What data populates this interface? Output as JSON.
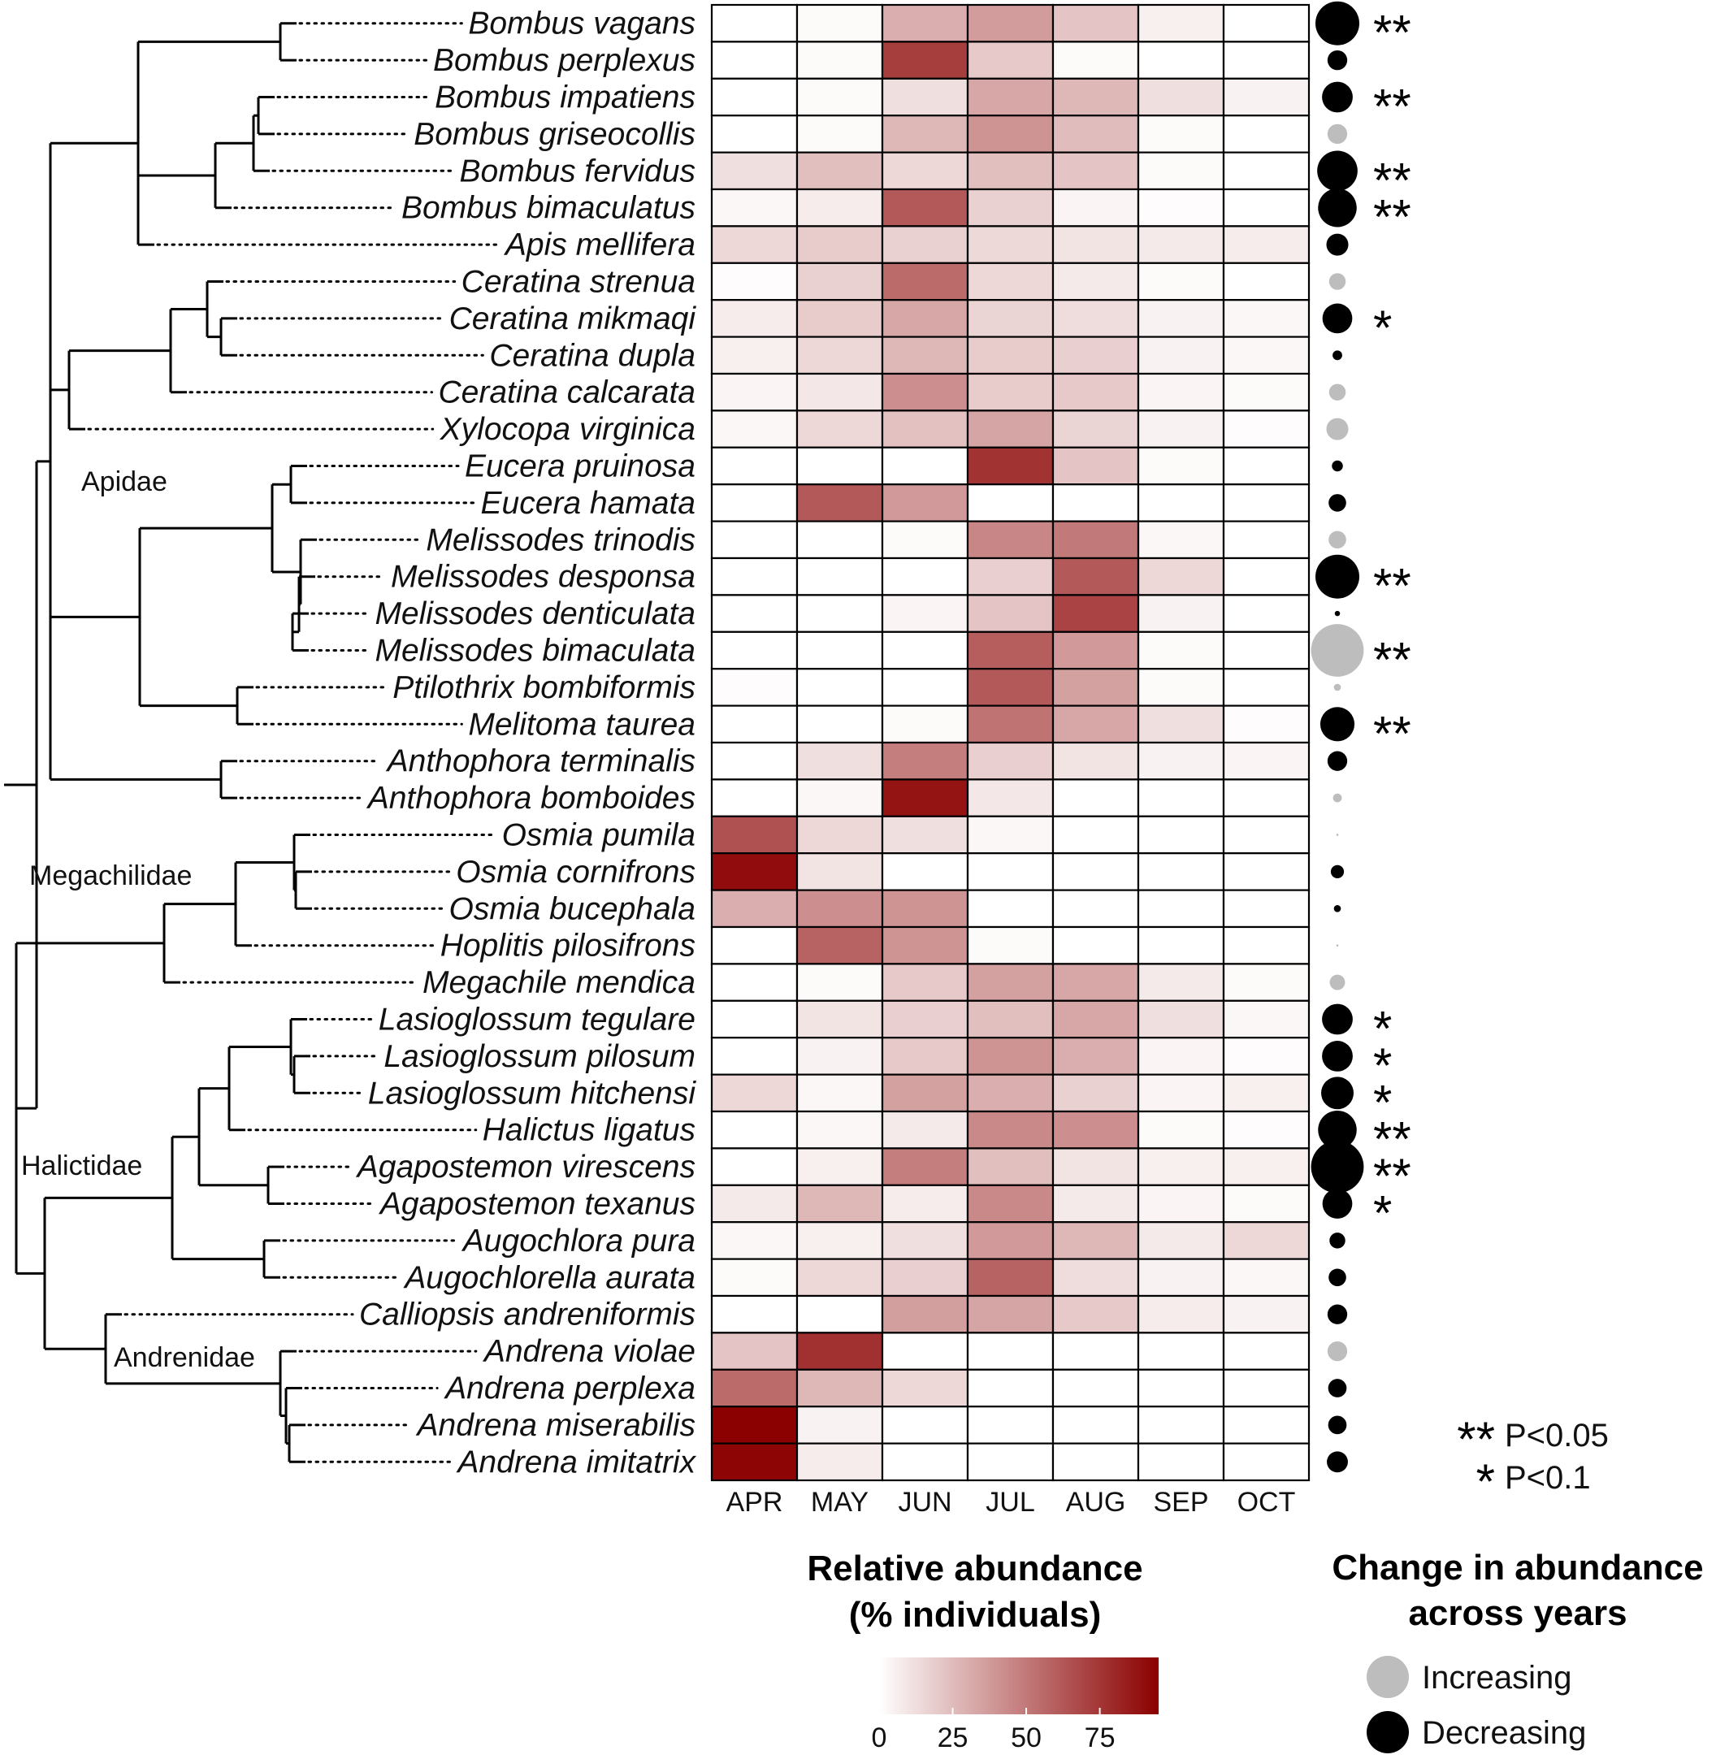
{
  "chart_data": {
    "type": "heatmap",
    "months": [
      "APR",
      "MAY",
      "JUN",
      "JUL",
      "AUG",
      "SEP",
      "OCT"
    ],
    "species": [
      "Bombus vagans",
      "Bombus perplexus",
      "Bombus impatiens",
      "Bombus griseocollis",
      "Bombus fervidus",
      "Bombus bimaculatus",
      "Apis mellifera",
      "Ceratina strenua",
      "Ceratina mikmaqi",
      "Ceratina dupla",
      "Ceratina calcarata",
      "Xylocopa virginica",
      "Eucera pruinosa",
      "Eucera hamata",
      "Melissodes trinodis",
      "Melissodes desponsa",
      "Melissodes denticulata",
      "Melissodes bimaculata",
      "Ptilothrix bombiformis",
      "Melitoma taurea",
      "Anthophora terminalis",
      "Anthophora bomboides",
      "Osmia pumila",
      "Osmia cornifrons",
      "Osmia bucephala",
      "Hoplitis pilosifrons",
      "Megachile mendica",
      "Lasioglossum tegulare",
      "Lasioglossum pilosum",
      "Lasioglossum hitchensi",
      "Halictus ligatus",
      "Agapostemon virescens",
      "Agapostemon texanus",
      "Augochlora pura",
      "Augochlorella aurata",
      "Calliopsis andreniformis",
      "Andrena violae",
      "Andrena perplexa",
      "Andrena miserabilis",
      "Andrena imitatrix"
    ],
    "values": [
      [
        0,
        2,
        30,
        37,
        22,
        6,
        0
      ],
      [
        0,
        2,
        72,
        20,
        2,
        0,
        0
      ],
      [
        0,
        2,
        12,
        33,
        27,
        12,
        5
      ],
      [
        0,
        2,
        27,
        40,
        25,
        2,
        0
      ],
      [
        12,
        24,
        15,
        24,
        22,
        2,
        0
      ],
      [
        3,
        7,
        62,
        17,
        4,
        1,
        0
      ],
      [
        15,
        19,
        17,
        14,
        10,
        8,
        7
      ],
      [
        1,
        17,
        55,
        15,
        8,
        2,
        0
      ],
      [
        7,
        19,
        33,
        16,
        13,
        5,
        3
      ],
      [
        6,
        15,
        27,
        19,
        18,
        5,
        3
      ],
      [
        4,
        9,
        42,
        19,
        20,
        4,
        2
      ],
      [
        3,
        15,
        23,
        34,
        16,
        5,
        1
      ],
      [
        0,
        0,
        0,
        76,
        22,
        2,
        0
      ],
      [
        0,
        62,
        38,
        0,
        0,
        0,
        0
      ],
      [
        0,
        0,
        2,
        45,
        50,
        3,
        0
      ],
      [
        0,
        0,
        0,
        18,
        62,
        15,
        0
      ],
      [
        0,
        0,
        4,
        22,
        70,
        5,
        0
      ],
      [
        0,
        0,
        0,
        60,
        38,
        2,
        0
      ],
      [
        1,
        0,
        0,
        62,
        35,
        2,
        0
      ],
      [
        0,
        0,
        2,
        52,
        33,
        12,
        1
      ],
      [
        0,
        12,
        48,
        18,
        10,
        5,
        4
      ],
      [
        0,
        3,
        88,
        9,
        0,
        0,
        0
      ],
      [
        65,
        15,
        12,
        3,
        0,
        0,
        0
      ],
      [
        90,
        10,
        0,
        0,
        0,
        0,
        0
      ],
      [
        30,
        42,
        40,
        0,
        0,
        0,
        0
      ],
      [
        0,
        58,
        40,
        2,
        0,
        0,
        0
      ],
      [
        0,
        2,
        20,
        35,
        33,
        8,
        2
      ],
      [
        0,
        10,
        18,
        24,
        33,
        12,
        3
      ],
      [
        0,
        5,
        20,
        40,
        30,
        4,
        1
      ],
      [
        15,
        3,
        35,
        30,
        17,
        4,
        6
      ],
      [
        0,
        3,
        8,
        44,
        42,
        2,
        1
      ],
      [
        0,
        6,
        48,
        24,
        10,
        6,
        6
      ],
      [
        8,
        27,
        7,
        44,
        8,
        4,
        2
      ],
      [
        3,
        6,
        12,
        38,
        27,
        8,
        15
      ],
      [
        2,
        15,
        18,
        58,
        13,
        5,
        3
      ],
      [
        0,
        0,
        36,
        34,
        20,
        7,
        5
      ],
      [
        22,
        77,
        0,
        0,
        0,
        0,
        0
      ],
      [
        55,
        27,
        15,
        0,
        0,
        0,
        0
      ],
      [
        95,
        5,
        0,
        0,
        0,
        0,
        0
      ],
      [
        93,
        7,
        0,
        0,
        0,
        0,
        0
      ]
    ],
    "change": [
      {
        "dir": "decreasing",
        "size": 1.0,
        "sig": "**"
      },
      {
        "dir": "decreasing",
        "size": 0.45,
        "sig": ""
      },
      {
        "dir": "decreasing",
        "size": 0.7,
        "sig": "**"
      },
      {
        "dir": "increasing",
        "size": 0.45,
        "sig": ""
      },
      {
        "dir": "decreasing",
        "size": 0.92,
        "sig": "**"
      },
      {
        "dir": "decreasing",
        "size": 0.88,
        "sig": "**"
      },
      {
        "dir": "decreasing",
        "size": 0.5,
        "sig": ""
      },
      {
        "dir": "increasing",
        "size": 0.38,
        "sig": ""
      },
      {
        "dir": "decreasing",
        "size": 0.68,
        "sig": "*"
      },
      {
        "dir": "decreasing",
        "size": 0.22,
        "sig": ""
      },
      {
        "dir": "increasing",
        "size": 0.38,
        "sig": ""
      },
      {
        "dir": "increasing",
        "size": 0.5,
        "sig": ""
      },
      {
        "dir": "decreasing",
        "size": 0.25,
        "sig": ""
      },
      {
        "dir": "decreasing",
        "size": 0.4,
        "sig": ""
      },
      {
        "dir": "increasing",
        "size": 0.4,
        "sig": ""
      },
      {
        "dir": "decreasing",
        "size": 1.0,
        "sig": "**"
      },
      {
        "dir": "decreasing",
        "size": 0.12,
        "sig": ""
      },
      {
        "dir": "increasing",
        "size": 1.2,
        "sig": "**"
      },
      {
        "dir": "increasing",
        "size": 0.16,
        "sig": ""
      },
      {
        "dir": "decreasing",
        "size": 0.78,
        "sig": "**"
      },
      {
        "dir": "decreasing",
        "size": 0.45,
        "sig": ""
      },
      {
        "dir": "increasing",
        "size": 0.2,
        "sig": ""
      },
      {
        "dir": "increasing",
        "size": 0.05,
        "sig": ""
      },
      {
        "dir": "decreasing",
        "size": 0.3,
        "sig": ""
      },
      {
        "dir": "decreasing",
        "size": 0.16,
        "sig": ""
      },
      {
        "dir": "increasing",
        "size": 0.05,
        "sig": ""
      },
      {
        "dir": "increasing",
        "size": 0.35,
        "sig": ""
      },
      {
        "dir": "decreasing",
        "size": 0.7,
        "sig": "*"
      },
      {
        "dir": "decreasing",
        "size": 0.7,
        "sig": "*"
      },
      {
        "dir": "decreasing",
        "size": 0.74,
        "sig": "*"
      },
      {
        "dir": "decreasing",
        "size": 0.88,
        "sig": "**"
      },
      {
        "dir": "decreasing",
        "size": 1.2,
        "sig": "**"
      },
      {
        "dir": "decreasing",
        "size": 0.68,
        "sig": "*"
      },
      {
        "dir": "decreasing",
        "size": 0.36,
        "sig": ""
      },
      {
        "dir": "decreasing",
        "size": 0.4,
        "sig": ""
      },
      {
        "dir": "decreasing",
        "size": 0.45,
        "sig": ""
      },
      {
        "dir": "increasing",
        "size": 0.45,
        "sig": ""
      },
      {
        "dir": "decreasing",
        "size": 0.42,
        "sig": ""
      },
      {
        "dir": "decreasing",
        "size": 0.42,
        "sig": ""
      },
      {
        "dir": "decreasing",
        "size": 0.48,
        "sig": ""
      }
    ],
    "families": [
      "Apidae",
      "Megachilidae",
      "Halictidae",
      "Andrenidae"
    ],
    "colorbar": {
      "title_line1": "Relative abundance",
      "title_line2": "(% individuals)",
      "ticks": [
        0,
        25,
        50,
        75
      ],
      "range": [
        0,
        95
      ],
      "low_color": "#ffffff",
      "high_color": "#8b0000"
    },
    "size_legend": {
      "title_line1": "Change in abundance",
      "title_line2": "across years",
      "increasing_label": "Increasing",
      "decreasing_label": "Decreasing",
      "increasing_color": "#bdbdbd",
      "decreasing_color": "#000000"
    },
    "significance": {
      "double": "**",
      "double_label": "P<0.05",
      "single": "*",
      "single_label": "P<0.1"
    }
  }
}
